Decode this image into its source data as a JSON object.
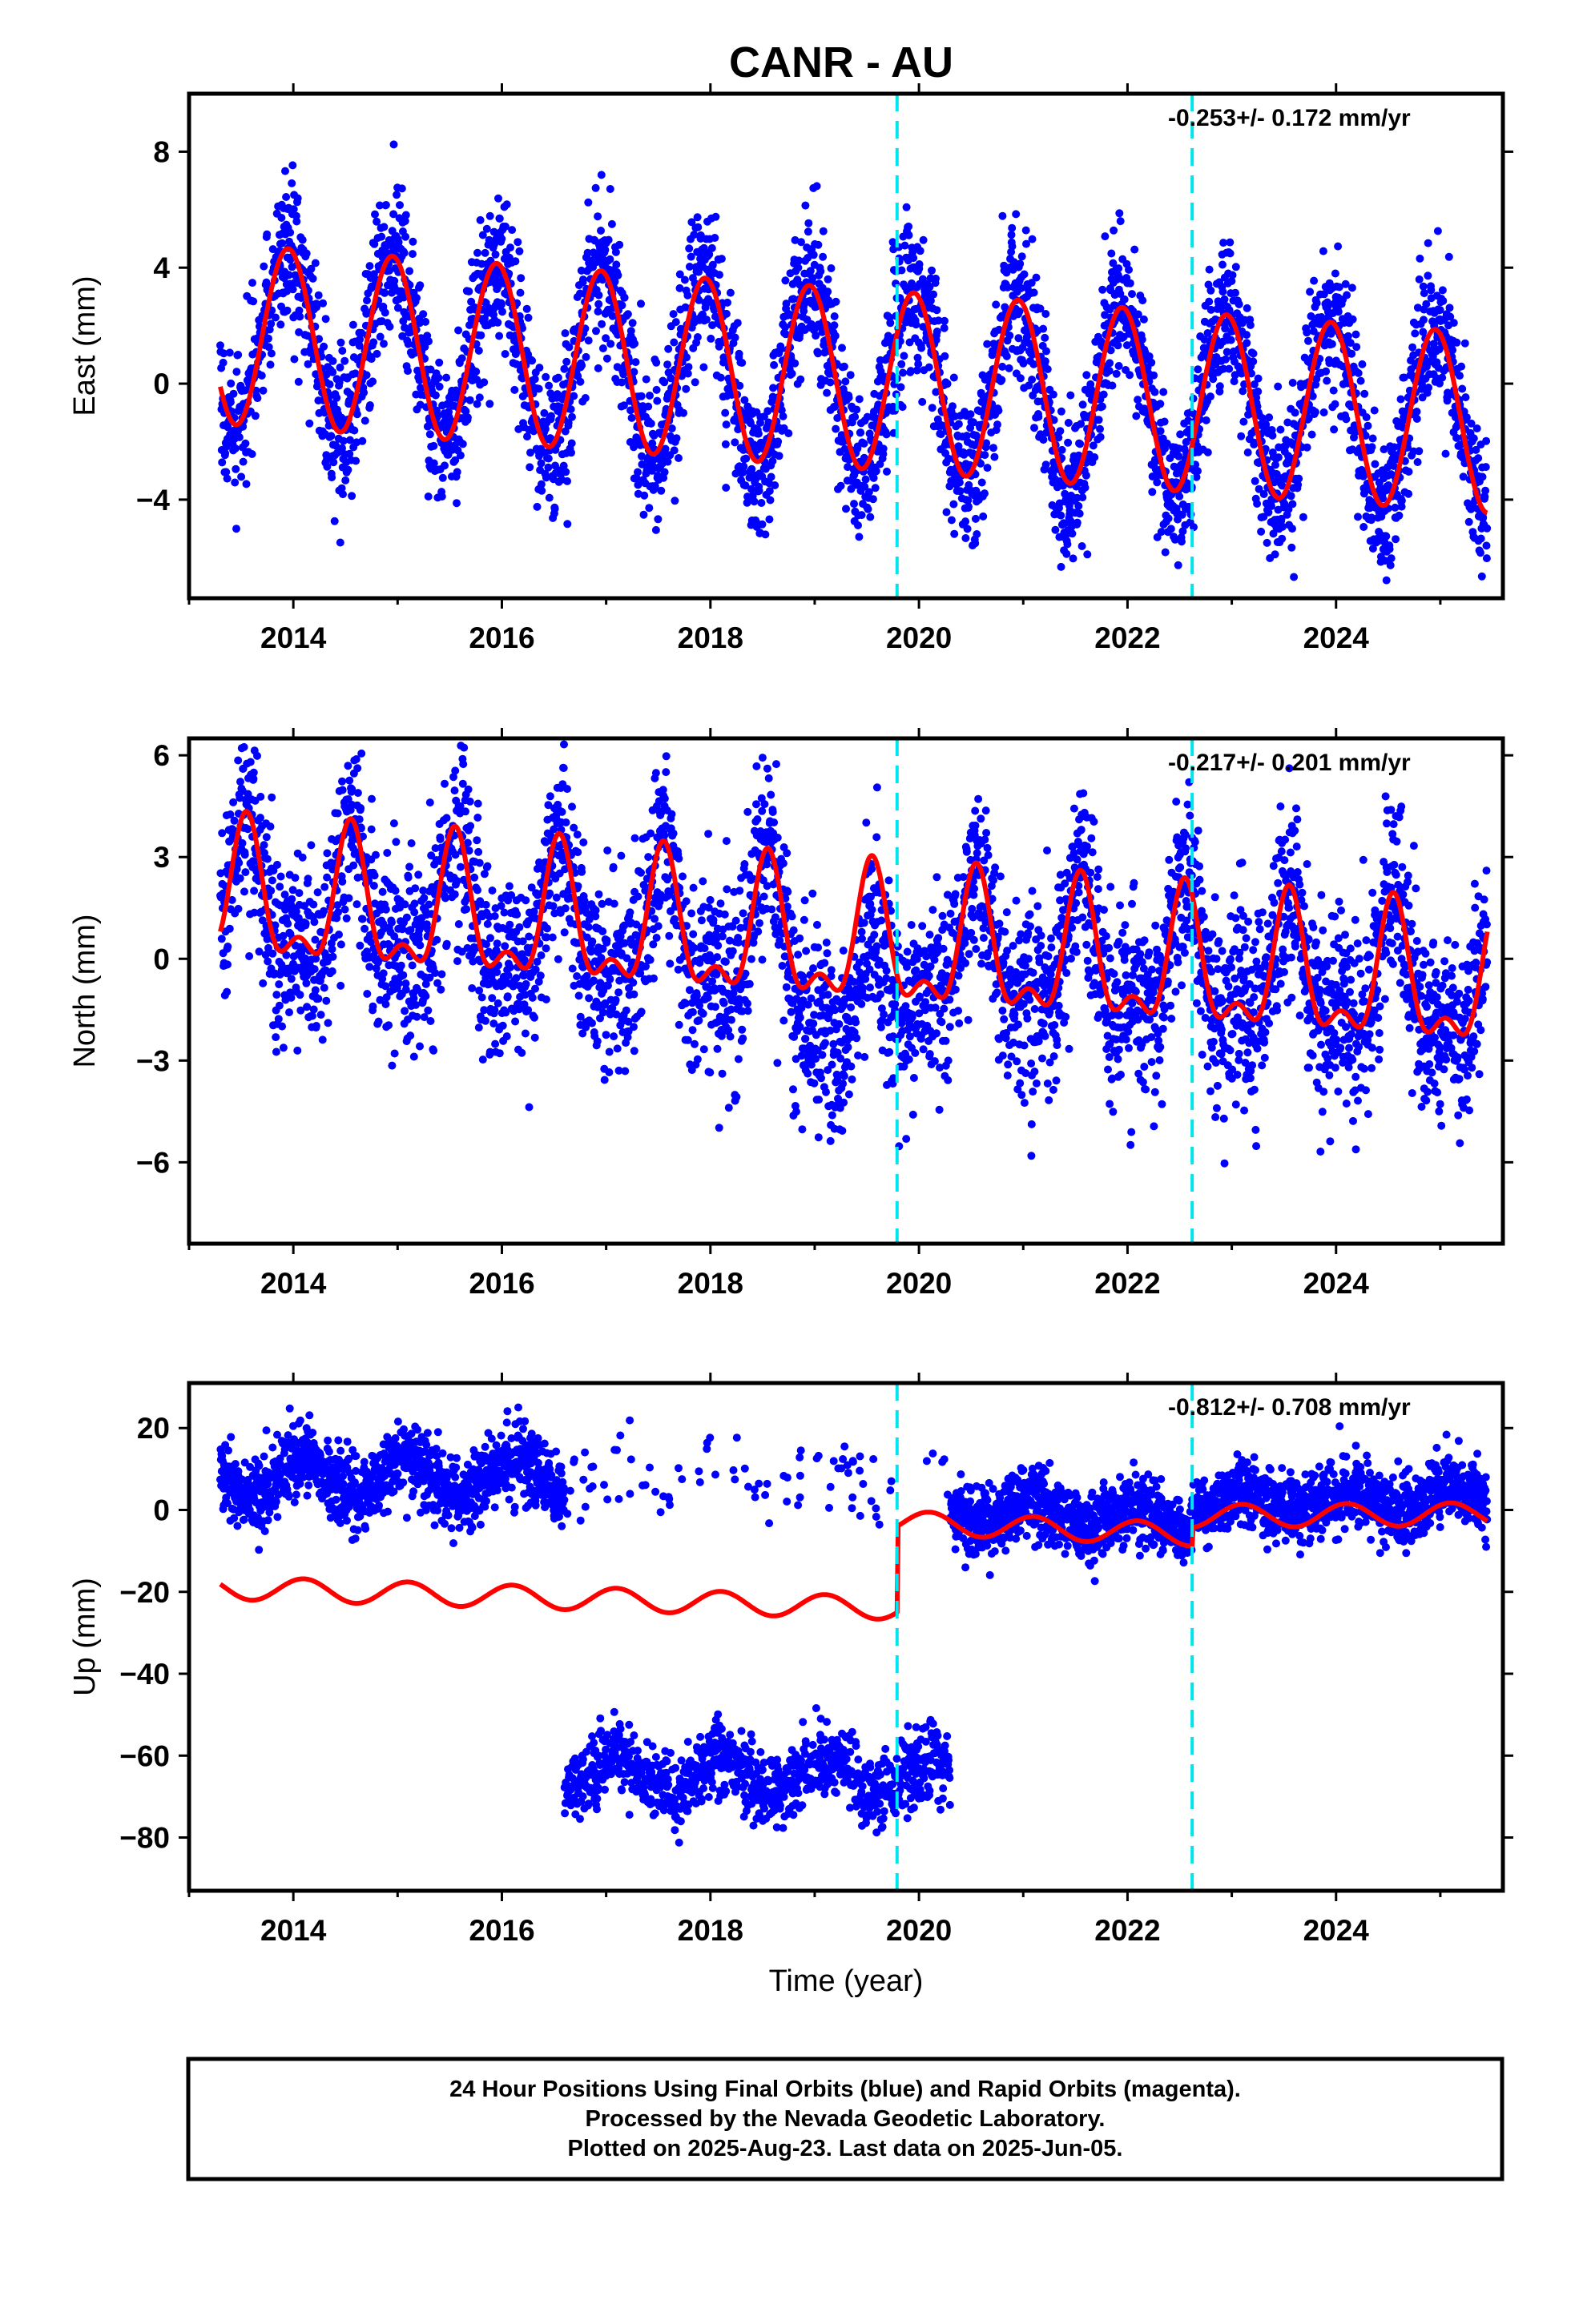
{
  "title": "CANR - AU",
  "footer": {
    "lines": [
      "24 Hour Positions Using Final Orbits (blue) and Rapid Orbits (magenta).",
      "Processed by the Nevada Geodetic Laboratory.",
      "Plotted on 2025-Aug-23. Last data on 2025-Jun-05."
    ]
  },
  "colors": {
    "data_points": "#0000ff",
    "model_line": "#ff0000",
    "event_lines": "#00e5ee",
    "frame": "#000000"
  },
  "chart_data": [
    {
      "type": "scatter",
      "ylabel": "East (mm)",
      "xlabel": "",
      "xlim": [
        2013.0,
        2025.6
      ],
      "ylim": [
        -7.4,
        10.0
      ],
      "xticks": [
        2014,
        2016,
        2018,
        2020,
        2022,
        2024
      ],
      "xtick_labels": [
        "2014",
        "2016",
        "2018",
        "2020",
        "2022",
        "2024"
      ],
      "yticks": [
        -4,
        0,
        4,
        8
      ],
      "ytick_labels": [
        "−4",
        "0",
        "4",
        "8"
      ],
      "rate_label": "-0.253+/- 0.172 mm/yr",
      "event_lines_x": [
        2019.79,
        2022.62
      ],
      "data_range": [
        2013.3,
        2025.45
      ],
      "series": [
        {
          "role": "daily positions",
          "marker": "dot",
          "color": "#0000ff"
        },
        {
          "role": "model fit",
          "marker": "line",
          "color": "#ff0000",
          "model": {
            "offset": 0.2,
            "trend_per_year": -0.253,
            "ref_year": 2019.3,
            "annual_amp": 3.1,
            "annual_peak": 0.95,
            "semiannual_amp": 0.0,
            "noise_sd": 1.3
          }
        }
      ]
    },
    {
      "type": "scatter",
      "ylabel": "North (mm)",
      "xlabel": "",
      "xlim": [
        2013.0,
        2025.6
      ],
      "ylim": [
        -8.4,
        6.5
      ],
      "xticks": [
        2014,
        2016,
        2018,
        2020,
        2022,
        2024
      ],
      "xtick_labels": [
        "2014",
        "2016",
        "2018",
        "2020",
        "2022",
        "2024"
      ],
      "yticks": [
        -6,
        -3,
        0,
        3,
        6
      ],
      "ytick_labels": [
        "−6",
        "−3",
        "0",
        "3",
        "6"
      ],
      "rate_label": "-0.217+/- 0.201 mm/yr",
      "event_lines_x": [
        2019.79,
        2022.62
      ],
      "data_range": [
        2013.3,
        2025.45
      ],
      "series": [
        {
          "role": "daily positions",
          "marker": "dot",
          "color": "#0000ff"
        },
        {
          "role": "model fit",
          "marker": "line",
          "color": "#ff0000",
          "model": {
            "offset": 0.4,
            "trend_per_year": -0.217,
            "ref_year": 2019.3,
            "annual_amp": 1.8,
            "annual_peak": 0.55,
            "semiannual_amp": 0.9,
            "semiannual_peak": 0.55,
            "noise_sd": 1.4
          }
        }
      ]
    },
    {
      "type": "scatter",
      "ylabel": "Up (mm)",
      "xlabel": "Time (year)",
      "xlim": [
        2013.0,
        2025.6
      ],
      "ylim": [
        -93.0,
        31.0
      ],
      "xticks": [
        2014,
        2016,
        2018,
        2020,
        2022,
        2024
      ],
      "xtick_labels": [
        "2014",
        "2016",
        "2018",
        "2020",
        "2022",
        "2024"
      ],
      "yticks": [
        -80,
        -60,
        -40,
        -20,
        0,
        20
      ],
      "ytick_labels": [
        "−80",
        "−60",
        "−40",
        "−20",
        "0",
        "20"
      ],
      "rate_label": "-0.812+/- 0.708 mm/yr",
      "event_lines_x": [
        2019.79,
        2022.62
      ],
      "data_range": [
        2013.3,
        2025.45
      ],
      "segments": [
        {
          "x": [
            2013.3,
            2020.3
          ],
          "level": 8.0,
          "note": "upper cluster"
        },
        {
          "x": [
            2016.6,
            2020.3
          ],
          "level": -65.0,
          "note": "lower cluster"
        },
        {
          "x": [
            2020.3,
            2025.45
          ],
          "level": 0.0,
          "note": "after 2020"
        }
      ],
      "series": [
        {
          "role": "daily positions",
          "marker": "dot",
          "color": "#0000ff"
        },
        {
          "role": "model fit",
          "marker": "line",
          "color": "#ff0000",
          "model": {
            "pieces": [
              {
                "x": [
                  2013.3,
                  2019.79
                ],
                "start": -19.0,
                "end": -24.0
              },
              {
                "x": [
                  2019.79,
                  2022.62
                ],
                "start": -3.0,
                "end": -6.0
              },
              {
                "x": [
                  2022.62,
                  2025.45
                ],
                "start": -1.5,
                "end": -1.0
              }
            ],
            "annual_amp": 2.8,
            "annual_peak": 0.1
          }
        }
      ]
    }
  ]
}
